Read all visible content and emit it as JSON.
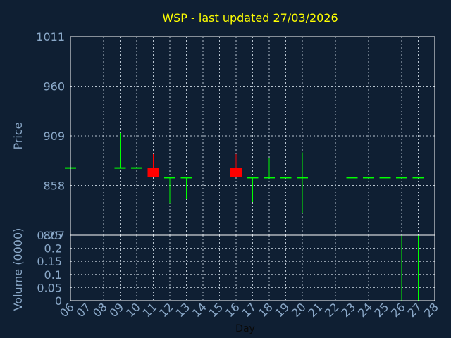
{
  "title": "WSP - last updated 27/03/2026",
  "colors": {
    "background": "#0f1f33",
    "title": "#ffff00",
    "axis_text": "#8aa8c8",
    "grid": "#b8c4d0",
    "frame": "#ffffff",
    "up": "#00ff00",
    "down": "#ff0000"
  },
  "chart_data": [
    {
      "type": "candlestick",
      "ylabel": "Price",
      "ylim": [
        807,
        1011
      ],
      "yticks": [
        "1011",
        "960",
        "909",
        "858",
        "807"
      ],
      "grid": true,
      "days": [
        {
          "x": "06",
          "open": 876,
          "close": 876,
          "high": 876,
          "low": 876,
          "color": "up"
        },
        {
          "x": "09",
          "open": 876,
          "close": 876,
          "high": 912,
          "low": 876,
          "color": "up"
        },
        {
          "x": "10",
          "open": 876,
          "close": 876,
          "high": 876,
          "low": 876,
          "color": "up"
        },
        {
          "x": "11",
          "open": 876,
          "close": 867,
          "high": 891,
          "low": 867,
          "color": "down"
        },
        {
          "x": "12",
          "open": 866,
          "close": 866,
          "high": 866,
          "low": 840,
          "color": "up"
        },
        {
          "x": "13",
          "open": 866,
          "close": 866,
          "high": 866,
          "low": 844,
          "color": "up"
        },
        {
          "x": "16",
          "open": 876,
          "close": 867,
          "high": 891,
          "low": 867,
          "color": "down"
        },
        {
          "x": "17",
          "open": 866,
          "close": 866,
          "high": 866,
          "low": 841,
          "color": "up"
        },
        {
          "x": "18",
          "open": 866,
          "close": 866,
          "high": 886,
          "low": 866,
          "color": "up"
        },
        {
          "x": "19",
          "open": 866,
          "close": 866,
          "high": 866,
          "low": 866,
          "color": "up"
        },
        {
          "x": "20",
          "open": 866,
          "close": 866,
          "high": 892,
          "low": 830,
          "color": "up"
        },
        {
          "x": "23",
          "open": 866,
          "close": 866,
          "high": 892,
          "low": 866,
          "color": "up"
        },
        {
          "x": "24",
          "open": 866,
          "close": 866,
          "high": 866,
          "low": 866,
          "color": "up"
        },
        {
          "x": "25",
          "open": 866,
          "close": 866,
          "high": 866,
          "low": 866,
          "color": "up"
        },
        {
          "x": "26",
          "open": 866,
          "close": 866,
          "high": 866,
          "low": 866,
          "color": "up"
        },
        {
          "x": "27",
          "open": 866,
          "close": 866,
          "high": 866,
          "low": 866,
          "color": "up"
        }
      ]
    },
    {
      "type": "bar",
      "ylabel": "Volume (0000)",
      "xlabel": "Day",
      "ylim": [
        0,
        0.25
      ],
      "yticks": [
        "0.25",
        "0.2",
        "0.15",
        "0.1",
        "0.05",
        "0"
      ],
      "grid": true,
      "categories": [
        "06",
        "07",
        "08",
        "09",
        "10",
        "11",
        "12",
        "13",
        "14",
        "15",
        "16",
        "17",
        "18",
        "19",
        "20",
        "21",
        "22",
        "23",
        "24",
        "25",
        "26",
        "27",
        "28"
      ],
      "values": [
        0,
        0,
        0,
        0,
        0,
        0,
        0,
        0,
        0,
        0,
        0,
        0,
        0,
        0,
        0,
        0,
        0,
        0,
        0,
        0,
        0.25,
        0.25,
        0
      ]
    }
  ]
}
